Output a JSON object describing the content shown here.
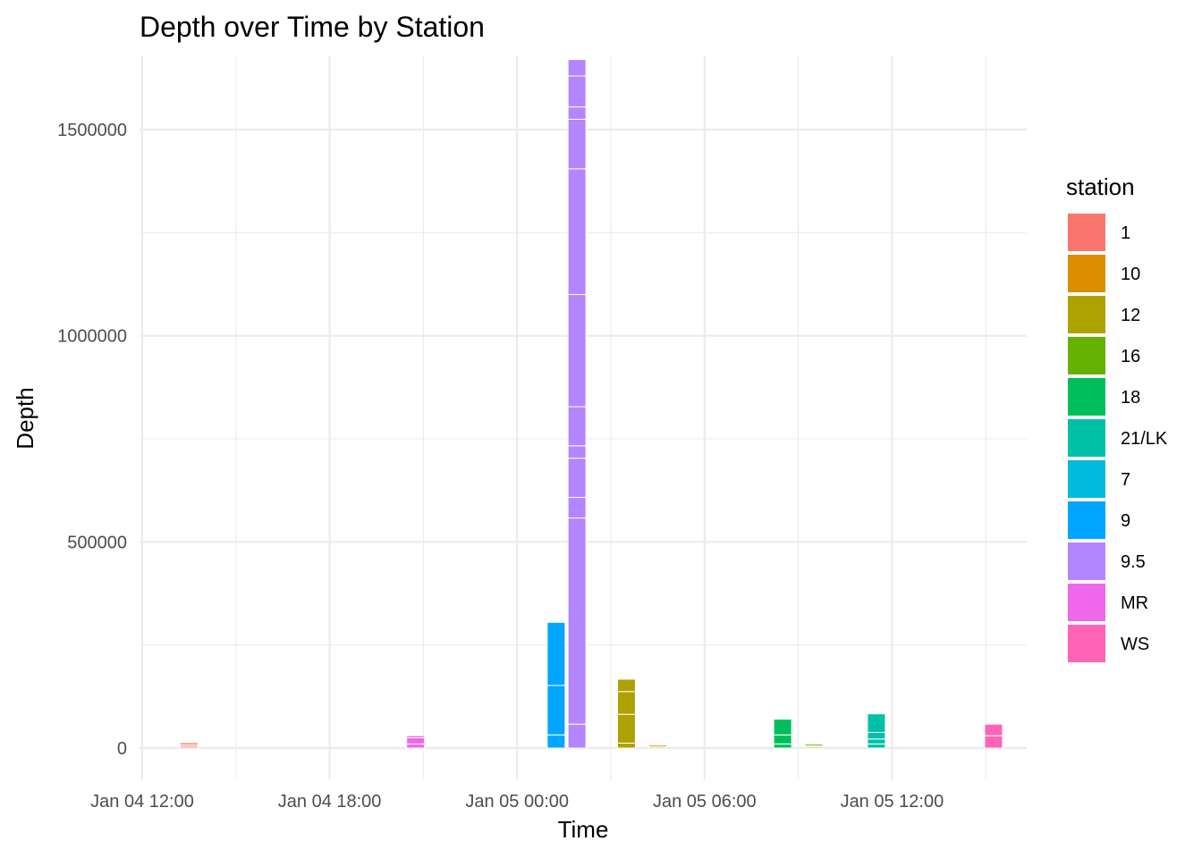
{
  "chart_data": {
    "type": "bar",
    "stacked": true,
    "title": "Depth over Time by Station",
    "xlabel": "Time",
    "ylabel": "Depth",
    "x_ticks": [
      "Jan 04 12:00",
      "Jan 04 18:00",
      "Jan 05 00:00",
      "Jan 05 06:00",
      "Jan 05 12:00"
    ],
    "y_ticks": [
      "0",
      "500000",
      "1000000",
      "1500000"
    ],
    "ylim": [
      -75000,
      1660000
    ],
    "grid": true,
    "legend_title": "station",
    "legend_position": "right",
    "series": [
      {
        "name": "1",
        "color": "#F8766D",
        "bars": [
          {
            "time": "Jan 04 13:30",
            "segments": [
              4000,
              4000,
              5000
            ]
          }
        ]
      },
      {
        "name": "10",
        "color": "#DB8E00",
        "bars": [
          {
            "time": "Jan 05 04:30",
            "segments": [
              3000,
              4000
            ]
          }
        ]
      },
      {
        "name": "12",
        "color": "#AEA200",
        "bars": [
          {
            "time": "Jan 05 03:30",
            "segments": [
              12000,
              70000,
              55000,
              30000
            ]
          }
        ]
      },
      {
        "name": "16",
        "color": "#64B200",
        "bars": [
          {
            "time": "Jan 05 09:30",
            "segments": [
              3000,
              3000,
              4000
            ]
          }
        ]
      },
      {
        "name": "18",
        "color": "#00BD5C",
        "bars": [
          {
            "time": "Jan 05 08:30",
            "segments": [
              10000,
              22000,
              38000
            ]
          }
        ]
      },
      {
        "name": "21/LK",
        "color": "#00C1A7",
        "bars": [
          {
            "time": "Jan 05 11:30",
            "segments": [
              10000,
              12000,
              16000,
              45000
            ]
          }
        ]
      },
      {
        "name": "7",
        "color": "#00BADE",
        "bars": []
      },
      {
        "name": "9",
        "color": "#00A6FF",
        "bars": [
          {
            "time": "Jan 05 01:15",
            "segments": [
              32000,
              120000,
              153000
            ]
          }
        ]
      },
      {
        "name": "9.5",
        "color": "#B385FF",
        "bars": [
          {
            "time": "Jan 05 01:55",
            "segments": [
              58000,
              500000,
              50000,
              95000,
              30000,
              95000,
              272000,
              305000,
              120000,
              30000,
              75000,
              40000
            ]
          }
        ]
      },
      {
        "name": "MR",
        "color": "#EF67EB",
        "bars": [
          {
            "time": "Jan 04 20:45",
            "segments": [
              10000,
              15000,
              5000
            ]
          }
        ]
      },
      {
        "name": "WS",
        "color": "#FF63B6",
        "bars": [
          {
            "time": "Jan 05 15:15",
            "segments": [
              30000,
              28000
            ]
          }
        ]
      }
    ]
  }
}
